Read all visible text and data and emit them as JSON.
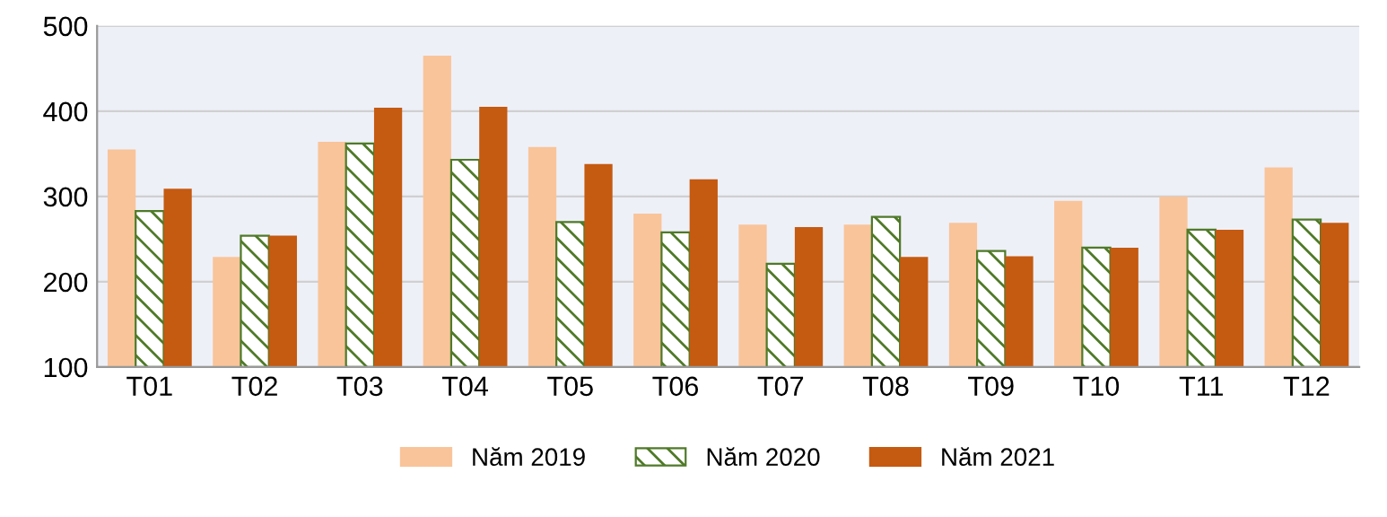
{
  "chart_data": {
    "type": "bar",
    "categories": [
      "T01",
      "T02",
      "T03",
      "T04",
      "T05",
      "T06",
      "T07",
      "T08",
      "T09",
      "T10",
      "T11",
      "T12"
    ],
    "series": [
      {
        "name": "Năm 2019",
        "color": "#f9c49a",
        "values": [
          355,
          229,
          364,
          465,
          358,
          280,
          267,
          267,
          269,
          295,
          300,
          334
        ]
      },
      {
        "name": "Năm 2020",
        "color": "#4f7a28",
        "values": [
          283,
          254,
          362,
          343,
          270,
          258,
          221,
          276,
          236,
          240,
          261,
          273
        ]
      },
      {
        "name": "Năm 2021",
        "color": "#c55a11",
        "values": [
          309,
          254,
          404,
          405,
          338,
          320,
          264,
          229,
          230,
          240,
          261,
          269
        ]
      }
    ],
    "ylim": [
      100,
      500
    ],
    "yticks": [
      100,
      200,
      300,
      400,
      500
    ],
    "grid": "y",
    "legend": "bottom"
  }
}
